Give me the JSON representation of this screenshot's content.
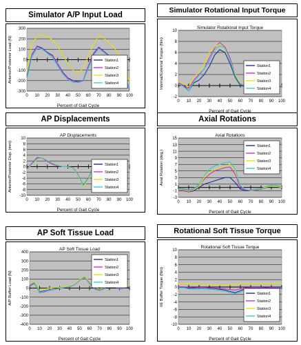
{
  "chart_data": [
    {
      "id": "p1",
      "type": "line",
      "heading": "Simulator A/P Input Load",
      "title": "",
      "xlabel": "Percent of Gait Cycle",
      "ylabel": "Anterior/Posterior Load (N)",
      "xlim": [
        0,
        100
      ],
      "ylim": [
        -300,
        300
      ],
      "yticks": [
        -300,
        -200,
        -100,
        0,
        100,
        200,
        300
      ],
      "xticks": [
        0,
        10,
        20,
        30,
        40,
        50,
        60,
        70,
        80,
        90,
        100
      ],
      "legend_position": "lower-right",
      "grid": true,
      "x": [
        0,
        5,
        10,
        15,
        20,
        25,
        30,
        35,
        40,
        45,
        50,
        55,
        60,
        65,
        70,
        75,
        80,
        85,
        90,
        95,
        100
      ],
      "series": [
        {
          "name": "Station1",
          "color": "#1f2f8f",
          "values": [
            -160,
            50,
            130,
            110,
            70,
            40,
            -40,
            -120,
            -175,
            -200,
            -210,
            -200,
            -60,
            60,
            120,
            80,
            40,
            10,
            -40,
            -150,
            -280
          ]
        },
        {
          "name": "Station2",
          "color": "#cc33cc",
          "values": [
            -170,
            45,
            125,
            105,
            65,
            35,
            -45,
            -125,
            -180,
            -205,
            -215,
            -195,
            -55,
            55,
            115,
            75,
            35,
            5,
            -45,
            -155,
            -290
          ]
        },
        {
          "name": "Station3",
          "color": "#e8e000",
          "values": [
            -120,
            160,
            220,
            240,
            220,
            190,
            130,
            40,
            -40,
            -100,
            -130,
            -80,
            40,
            150,
            230,
            210,
            160,
            120,
            40,
            -60,
            -200
          ]
        },
        {
          "name": "Station4",
          "color": "#33cccc",
          "values": [
            -180,
            30,
            110,
            100,
            60,
            20,
            -60,
            -140,
            -190,
            -215,
            -220,
            -205,
            -80,
            40,
            105,
            70,
            30,
            0,
            -55,
            -165,
            -280
          ]
        }
      ]
    },
    {
      "id": "p2",
      "type": "line",
      "heading": "Simulator Rotational Input Torque",
      "title": "Simulator Rotational Input Torque",
      "xlabel": "Percent of Gait Cycle",
      "ylabel": "Internal/External Torque (Nm)",
      "xlim": [
        0,
        100
      ],
      "ylim": [
        -2,
        10
      ],
      "yticks": [
        -2,
        0,
        2,
        4,
        6,
        8,
        10
      ],
      "xticks": [
        0,
        10,
        20,
        30,
        40,
        50,
        60,
        70,
        80,
        90,
        100
      ],
      "legend_position": "lower-right",
      "grid": true,
      "x": [
        0,
        5,
        10,
        15,
        20,
        25,
        30,
        35,
        40,
        45,
        50,
        55,
        60,
        65,
        70,
        75,
        80,
        85,
        90,
        95,
        100
      ],
      "series": [
        {
          "name": "Station1",
          "color": "#1f2f8f",
          "values": [
            0.5,
            0,
            -1,
            0.5,
            1,
            2,
            3.5,
            5.5,
            6.5,
            6,
            4,
            1.5,
            0,
            -0.2,
            -0.3,
            -0.2,
            -0.2,
            -0.3,
            -0.2,
            -0.2,
            -0.3
          ]
        },
        {
          "name": "Station2",
          "color": "#cc33cc",
          "values": [
            0.5,
            0,
            -0.5,
            1,
            2,
            3,
            5,
            6.8,
            7.8,
            7,
            5,
            2,
            0.3,
            0,
            -0.2,
            0,
            -0.1,
            -0.3,
            -0.2,
            -0.1,
            -0.2
          ]
        },
        {
          "name": "Station3",
          "color": "#e8e000",
          "values": [
            0.8,
            0.3,
            -0.2,
            1.5,
            2.5,
            4,
            6,
            7,
            7.5,
            6.5,
            4.5,
            2,
            0.5,
            0.2,
            0,
            0.2,
            0,
            -0.1,
            0,
            0.1,
            0
          ]
        },
        {
          "name": "Station4",
          "color": "#33cccc",
          "values": [
            0.3,
            -0.2,
            -1,
            0.7,
            1.8,
            3,
            4.5,
            6.5,
            7.2,
            6.8,
            4.5,
            1.8,
            0.2,
            -0.1,
            -0.3,
            -0.1,
            -0.2,
            -0.3,
            -0.2,
            -0.2,
            -0.3
          ]
        }
      ]
    },
    {
      "id": "p3",
      "type": "line",
      "heading": "AP Displacements",
      "title": "AP Displacements",
      "xlabel": "Percent of Gait Cycle",
      "ylabel": "Anterior/Posterior Disp. (mm)",
      "xlim": [
        0,
        100
      ],
      "ylim": [
        -10,
        10
      ],
      "yticks": [
        -10,
        -8,
        -6,
        -4,
        -2,
        0,
        2,
        4,
        6,
        8,
        10
      ],
      "xticks": [
        0,
        10,
        20,
        30,
        40,
        50,
        60,
        70,
        80,
        90,
        100
      ],
      "legend_position": "lower-right",
      "grid": true,
      "x": [
        0,
        5,
        10,
        15,
        20,
        25,
        30,
        35,
        40,
        45,
        50,
        55,
        60,
        65,
        70,
        75,
        80,
        85,
        90,
        95,
        100
      ],
      "series": [
        {
          "name": "Station1",
          "color": "#1f2f8f",
          "values": [
            -1,
            1,
            3,
            3.2,
            2,
            1,
            0.3,
            0,
            0,
            -0.5,
            -3,
            -6.5,
            -4,
            0,
            1.5,
            2.3,
            1.8,
            0.8,
            0,
            0,
            0
          ]
        },
        {
          "name": "Station2",
          "color": "#cc33cc",
          "values": [
            -0.8,
            1.2,
            3.2,
            3,
            1.8,
            0.8,
            0.2,
            0.1,
            0,
            -0.3,
            -2.8,
            -6.8,
            -4.2,
            -0.2,
            1.3,
            2.5,
            1.9,
            0.6,
            -0.1,
            0.1,
            0
          ]
        },
        {
          "name": "Station3",
          "color": "#e8e000",
          "values": [
            -1.2,
            0.8,
            2.5,
            3.3,
            2.2,
            1.2,
            0.5,
            0.1,
            -0.2,
            -0.6,
            -3.2,
            -7,
            -4.4,
            -0.5,
            1,
            2,
            2.2,
            1,
            0.2,
            -0.1,
            0.1
          ]
        },
        {
          "name": "Station4",
          "color": "#33cccc",
          "values": [
            -1,
            0.9,
            2.8,
            3.1,
            2.1,
            1.1,
            0.4,
            0,
            -0.1,
            -0.4,
            -3,
            -6.6,
            -4.1,
            -0.1,
            1.2,
            2.4,
            2,
            0.9,
            0.1,
            0,
            0
          ]
        }
      ]
    },
    {
      "id": "p4",
      "type": "line",
      "heading": "Axial Rotations",
      "title": "Axial Rotations",
      "xlabel": "Percent of Gait Cycle",
      "ylabel": "Axial Rotation (deg.)",
      "xlim": [
        0,
        100
      ],
      "ylim": [
        -3,
        15
      ],
      "yticks": [
        -3,
        -1,
        1,
        3,
        5,
        7,
        9,
        11,
        13,
        15
      ],
      "xticks": [
        0,
        10,
        20,
        30,
        40,
        50,
        60,
        70,
        80,
        90,
        100
      ],
      "legend_position": "top-right",
      "grid": true,
      "x": [
        0,
        5,
        10,
        15,
        20,
        25,
        30,
        35,
        40,
        45,
        50,
        55,
        60,
        65,
        70,
        75,
        80,
        85,
        90,
        95,
        100
      ],
      "series": [
        {
          "name": "Station1",
          "color": "#1f2f8f",
          "values": [
            -1,
            -1,
            -1.3,
            -1,
            0,
            1,
            1.5,
            2,
            2.5,
            3,
            3,
            1.5,
            -0.5,
            -1,
            -1,
            -0.8,
            -0.5,
            0,
            0.5,
            0.5,
            0
          ]
        },
        {
          "name": "Station2",
          "color": "#cc33cc",
          "values": [
            -0.5,
            -0.5,
            -1,
            -0.5,
            0.5,
            2.5,
            4,
            5,
            5.5,
            6,
            6.2,
            4,
            0,
            -0.8,
            -0.8,
            -0.5,
            -0.3,
            0.2,
            0.6,
            0.5,
            0.2
          ]
        },
        {
          "name": "Station3",
          "color": "#e8e000",
          "values": [
            -0.8,
            -0.8,
            -1.2,
            -0.7,
            0.3,
            3,
            4.5,
            5.5,
            6,
            6.5,
            7,
            5,
            0.5,
            -0.5,
            -1,
            -0.7,
            -0.4,
            0.1,
            0.4,
            0.3,
            0
          ]
        },
        {
          "name": "Station4",
          "color": "#33cccc",
          "values": [
            -0.3,
            -0.3,
            -0.8,
            -0.3,
            1,
            3.5,
            5.5,
            6.5,
            7,
            7.5,
            7.8,
            5.5,
            0.5,
            -0.6,
            -0.9,
            -0.6,
            -0.3,
            0.3,
            0.7,
            0.6,
            0.3
          ]
        }
      ]
    },
    {
      "id": "p5",
      "type": "line",
      "heading": "AP Soft Tissue Load",
      "title": "AP Soft Tissue Load",
      "xlabel": "Percent of Gait Cycle",
      "ylabel": "A/P Buffer Load (N)",
      "xlim": [
        0,
        100
      ],
      "ylim": [
        -400,
        400
      ],
      "yticks": [
        -400,
        -300,
        -200,
        -100,
        0,
        100,
        200,
        300,
        400
      ],
      "xticks": [
        0,
        10,
        20,
        30,
        40,
        50,
        60,
        70,
        80,
        90,
        100
      ],
      "legend_position": "top-right",
      "grid": true,
      "x": [
        0,
        5,
        10,
        15,
        20,
        25,
        30,
        35,
        40,
        45,
        50,
        55,
        60,
        65,
        70,
        75,
        80,
        85,
        90,
        95,
        100
      ],
      "series": [
        {
          "name": "Station1",
          "color": "#1f2f8f",
          "values": [
            30,
            60,
            -40,
            -30,
            -20,
            -10,
            0,
            10,
            20,
            40,
            90,
            130,
            60,
            0,
            -20,
            0,
            40,
            20,
            0,
            10,
            20
          ]
        },
        {
          "name": "Station2",
          "color": "#cc33cc",
          "values": [
            20,
            50,
            -50,
            -40,
            -25,
            -15,
            -5,
            5,
            15,
            35,
            85,
            120,
            50,
            -10,
            -25,
            -5,
            30,
            10,
            -10,
            0,
            10
          ]
        },
        {
          "name": "Station3",
          "color": "#e8e000",
          "values": [
            40,
            70,
            -20,
            -10,
            0,
            5,
            10,
            15,
            25,
            45,
            95,
            135,
            70,
            10,
            -10,
            10,
            50,
            30,
            10,
            15,
            25
          ]
        },
        {
          "name": "Station4",
          "color": "#33cccc",
          "values": [
            25,
            55,
            -45,
            -35,
            -22,
            -12,
            -2,
            8,
            18,
            38,
            88,
            125,
            55,
            -5,
            -22,
            -2,
            35,
            15,
            -5,
            5,
            15
          ]
        }
      ]
    },
    {
      "id": "p6",
      "type": "line",
      "heading": "Rotational Soft Tissue Torque",
      "title": "Rotational Soft Tissue Torque",
      "xlabel": "Percent of Gait Cycle",
      "ylabel": "I/E Buffer Torque (Nm)",
      "xlim": [
        0,
        100
      ],
      "ylim": [
        -10,
        10
      ],
      "yticks": [
        -10,
        -8,
        -6,
        -4,
        -2,
        0,
        2,
        4,
        6,
        8,
        10
      ],
      "xticks": [
        0,
        10,
        20,
        30,
        40,
        50,
        60,
        70,
        80,
        90,
        100
      ],
      "legend_position": "lower-right",
      "grid": true,
      "x": [
        0,
        5,
        10,
        15,
        20,
        25,
        30,
        35,
        40,
        45,
        50,
        55,
        60,
        65,
        70,
        75,
        80,
        85,
        90,
        95,
        100
      ],
      "series": [
        {
          "name": "Station1",
          "color": "#1f2f8f",
          "values": [
            0,
            0,
            -0.3,
            -0.3,
            -0.2,
            -0.2,
            -0.3,
            -0.4,
            -0.6,
            -0.8,
            -1.2,
            -1.5,
            -1,
            -0.4,
            -0.2,
            -0.2,
            -0.2,
            -0.3,
            -0.2,
            -0.2,
            -0.2
          ]
        },
        {
          "name": "Station2",
          "color": "#cc33cc",
          "values": [
            0.1,
            0.1,
            -0.1,
            -0.2,
            -0.1,
            -0.1,
            -0.2,
            -0.3,
            -0.4,
            -0.5,
            -0.7,
            -0.8,
            -0.5,
            -0.2,
            -0.1,
            -0.1,
            -0.1,
            -0.2,
            -0.1,
            -0.1,
            -0.1
          ]
        },
        {
          "name": "Station3",
          "color": "#e8e000",
          "values": [
            0.8,
            1,
            1,
            0.8,
            0.8,
            0.7,
            0.6,
            0.6,
            0.5,
            0.5,
            0.6,
            0.8,
            1,
            1,
            0.9,
            1,
            1,
            0.9,
            1,
            1,
            0.9
          ]
        },
        {
          "name": "Station4",
          "color": "#33cccc",
          "values": [
            -0.2,
            -0.2,
            -0.5,
            -0.6,
            -0.5,
            -0.5,
            -0.6,
            -0.7,
            -0.9,
            -1.1,
            -1.5,
            -1.8,
            -1.3,
            -0.6,
            -0.4,
            -0.4,
            -0.4,
            -0.5,
            -0.4,
            -0.4,
            -0.4
          ]
        }
      ]
    }
  ]
}
